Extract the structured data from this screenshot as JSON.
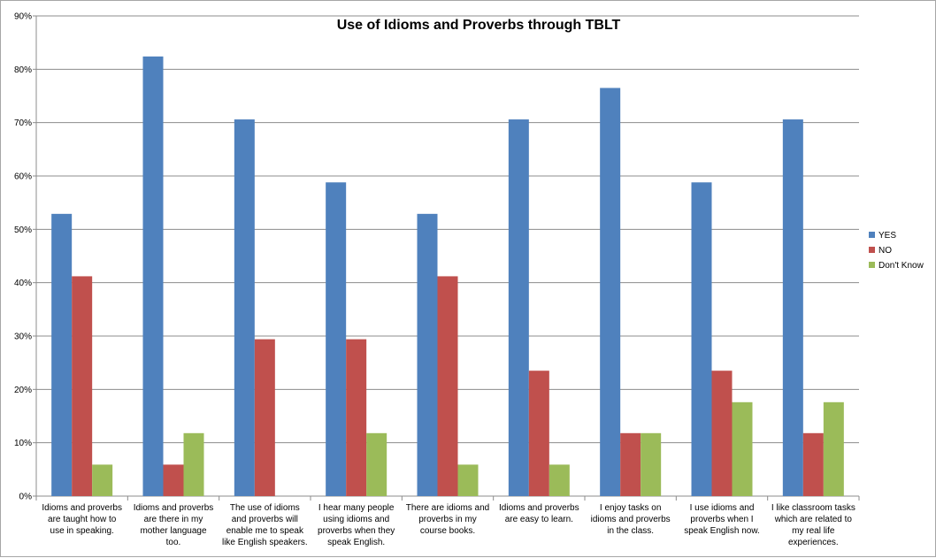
{
  "chart_data": {
    "type": "bar",
    "title": "Use of Idioms and Proverbs through TBLT",
    "xlabel": "",
    "ylabel": "",
    "ylim": [
      0,
      90
    ],
    "y_tick_step": 10,
    "y_tick_format": "percent",
    "grid": true,
    "legend_position": "right",
    "categories": [
      "Idioms and proverbs are taught how to use in speaking.",
      "Idioms and proverbs are there in my mother language too.",
      "The use of idioms and proverbs will enable me to speak like English speakers.",
      "I hear many people using idioms and proverbs when they speak English.",
      "There are idioms and proverbs in my course books.",
      "Idioms and proverbs are easy to learn.",
      "I enjoy  tasks on idioms and proverbs in the class.",
      "I  use idioms and proverbs when I speak English now.",
      "I like classroom tasks which are related to my real life experiences."
    ],
    "category_lines": [
      [
        "Idioms and proverbs",
        "are taught how to",
        "use in speaking."
      ],
      [
        "Idioms and proverbs",
        "are there in my",
        "mother language",
        "too."
      ],
      [
        "The use of idioms",
        "and proverbs will",
        "enable me to speak",
        "like English speakers."
      ],
      [
        "I hear many people",
        "using idioms and",
        "proverbs when they",
        "speak English."
      ],
      [
        "There are idioms and",
        "proverbs in my",
        "course books."
      ],
      [
        "Idioms and proverbs",
        "are easy to learn."
      ],
      [
        "I enjoy  tasks on",
        "idioms and proverbs",
        "in the class."
      ],
      [
        "I  use idioms and",
        "proverbs when I",
        "speak English now."
      ],
      [
        "I like classroom tasks",
        "which are related to",
        "my real life",
        "experiences."
      ]
    ],
    "series": [
      {
        "name": "YES",
        "color": "#4f81bd",
        "values": [
          52.9,
          82.4,
          70.6,
          58.8,
          52.9,
          70.6,
          76.5,
          58.8,
          70.6
        ]
      },
      {
        "name": "NO",
        "color": "#c0504d",
        "values": [
          41.2,
          5.9,
          29.4,
          29.4,
          41.2,
          23.5,
          11.8,
          23.5,
          11.8
        ]
      },
      {
        "name": "Don't Know",
        "color": "#9bbb59",
        "values": [
          5.9,
          11.8,
          0,
          11.8,
          5.9,
          5.9,
          11.8,
          17.6,
          17.6
        ]
      }
    ]
  }
}
